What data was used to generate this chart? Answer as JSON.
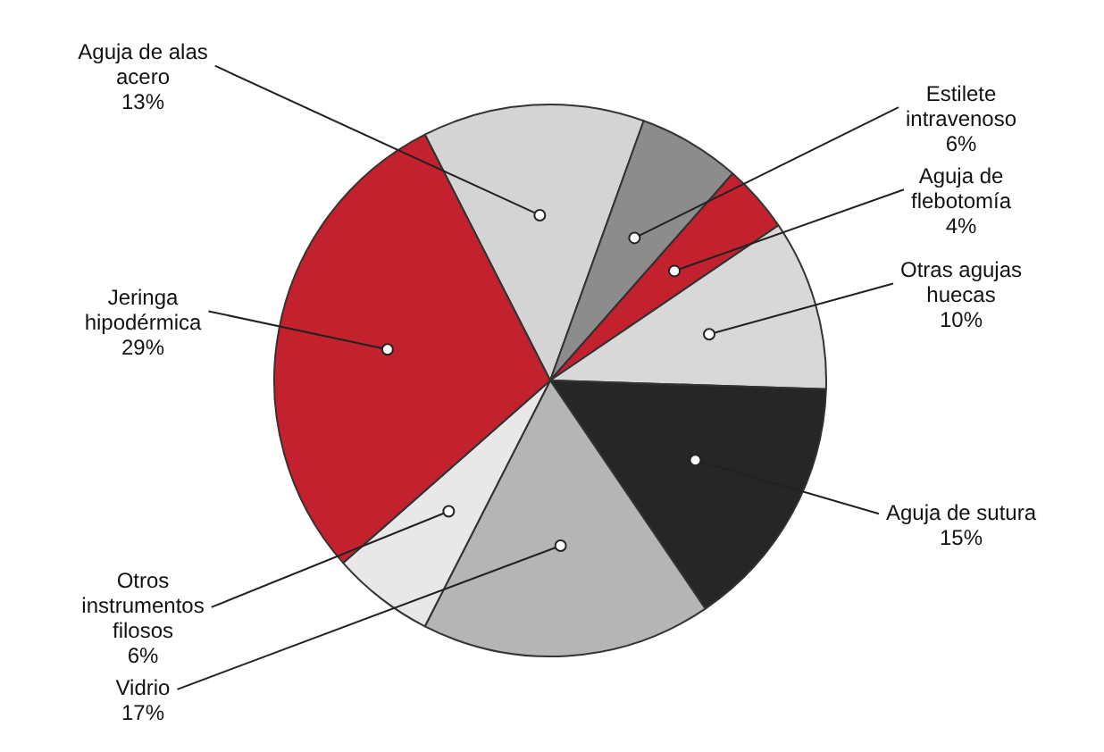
{
  "chart_data": {
    "type": "pie",
    "categories": [
      "Aguja de alas acero",
      "Estilete intravenoso",
      "Aguja de flebotomía",
      "Otras agujas huecas",
      "Aguja de sutura",
      "Vidrio",
      "Otros instrumentos filosos",
      "Jeringa hipodérmica"
    ],
    "values": [
      13,
      6,
      4,
      10,
      15,
      17,
      6,
      29
    ],
    "value_labels": [
      "13%",
      "6%",
      "4%",
      "10%",
      "15%",
      "17%",
      "6%",
      "29%"
    ],
    "colors": [
      "#d4d4d4",
      "#8c8c8c",
      "#c4212e",
      "#d8d8d8",
      "#262626",
      "#b5b5b5",
      "#e8e8e8",
      "#c4212e"
    ],
    "legend": false
  }
}
